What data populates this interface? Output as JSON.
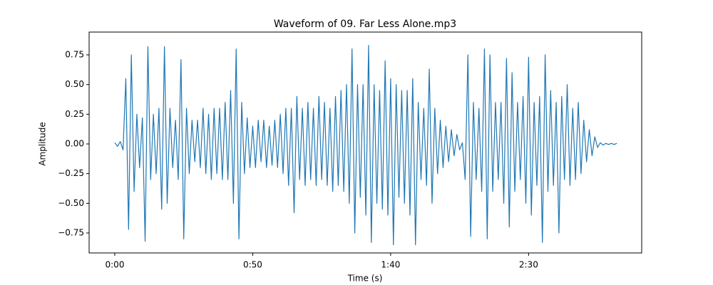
{
  "chart_data": {
    "type": "line",
    "title": "Waveform of 09. Far Less Alone.mp3",
    "x_label": "Time (s)",
    "y_label": "Amplitude",
    "xlim": [
      -9.3,
      191
    ],
    "ylim": [
      -0.918,
      0.942
    ],
    "xticks": [
      {
        "value": 0,
        "label": "0:00"
      },
      {
        "value": 50,
        "label": "0:50"
      },
      {
        "value": 100,
        "label": "1:40"
      },
      {
        "value": 150,
        "label": "2:30"
      }
    ],
    "yticks": [
      {
        "value": -0.75,
        "label": "−0.75"
      },
      {
        "value": -0.5,
        "label": "−0.50"
      },
      {
        "value": -0.25,
        "label": "−0.25"
      },
      {
        "value": 0,
        "label": "0.00"
      },
      {
        "value": 0.25,
        "label": "0.25"
      },
      {
        "value": 0.5,
        "label": "0.50"
      },
      {
        "value": 0.75,
        "label": "0.75"
      }
    ],
    "x": [
      0,
      1,
      2,
      3,
      4,
      5,
      6,
      7,
      8,
      9,
      10,
      11,
      12,
      13,
      14,
      15,
      16,
      17,
      18,
      19,
      20,
      21,
      22,
      23,
      24,
      25,
      26,
      27,
      28,
      29,
      30,
      31,
      32,
      33,
      34,
      35,
      36,
      37,
      38,
      39,
      40,
      41,
      42,
      43,
      44,
      45,
      46,
      47,
      48,
      49,
      50,
      51,
      52,
      53,
      54,
      55,
      56,
      57,
      58,
      59,
      60,
      61,
      62,
      63,
      64,
      65,
      66,
      67,
      68,
      69,
      70,
      71,
      72,
      73,
      74,
      75,
      76,
      77,
      78,
      79,
      80,
      81,
      82,
      83,
      84,
      85,
      86,
      87,
      88,
      89,
      90,
      91,
      92,
      93,
      94,
      95,
      96,
      97,
      98,
      99,
      100,
      101,
      102,
      103,
      104,
      105,
      106,
      107,
      108,
      109,
      110,
      111,
      112,
      113,
      114,
      115,
      116,
      117,
      118,
      119,
      120,
      121,
      122,
      123,
      124,
      125,
      126,
      127,
      128,
      129,
      130,
      131,
      132,
      133,
      134,
      135,
      136,
      137,
      138,
      139,
      140,
      141,
      142,
      143,
      144,
      145,
      146,
      147,
      148,
      149,
      150,
      151,
      152,
      153,
      154,
      155,
      156,
      157,
      158,
      159,
      160,
      161,
      162,
      163,
      164,
      165,
      166,
      167,
      168,
      169,
      170,
      171,
      172,
      173,
      174,
      175,
      176,
      177,
      178,
      179,
      180,
      181,
      182
    ],
    "series": [
      {
        "color": "#1f77b4",
        "values": [
          0.01,
          -0.02,
          0.02,
          -0.05,
          0.55,
          -0.72,
          0.75,
          -0.4,
          0.25,
          -0.2,
          0.22,
          -0.82,
          0.82,
          -0.3,
          0.25,
          -0.25,
          0.3,
          -0.55,
          0.82,
          -0.5,
          0.3,
          -0.2,
          0.2,
          -0.3,
          0.71,
          -0.8,
          0.3,
          -0.25,
          0.2,
          -0.15,
          0.2,
          -0.2,
          0.3,
          -0.25,
          0.25,
          -0.3,
          0.3,
          -0.25,
          0.3,
          -0.3,
          0.35,
          -0.3,
          0.45,
          -0.5,
          0.8,
          -0.8,
          0.35,
          -0.25,
          0.22,
          -0.2,
          0.15,
          -0.2,
          0.2,
          -0.15,
          0.2,
          -0.2,
          0.15,
          -0.18,
          0.2,
          -0.2,
          0.25,
          -0.25,
          0.3,
          -0.35,
          0.3,
          -0.58,
          0.4,
          -0.3,
          0.3,
          -0.35,
          0.35,
          -0.3,
          0.3,
          -0.35,
          0.4,
          -0.3,
          0.35,
          -0.35,
          0.3,
          -0.4,
          0.4,
          -0.35,
          0.45,
          -0.4,
          0.5,
          -0.5,
          0.8,
          -0.75,
          0.5,
          -0.45,
          0.5,
          -0.6,
          0.83,
          -0.83,
          0.5,
          -0.5,
          0.45,
          -0.55,
          0.7,
          -0.6,
          0.55,
          -0.85,
          0.5,
          -0.45,
          0.45,
          -0.5,
          0.45,
          -0.6,
          0.55,
          -0.85,
          0.35,
          -0.3,
          0.3,
          -0.35,
          0.63,
          -0.5,
          0.3,
          -0.25,
          0.2,
          -0.2,
          0.15,
          -0.15,
          0.12,
          -0.1,
          0.08,
          -0.05,
          0.01,
          -0.3,
          0.75,
          -0.78,
          0.35,
          -0.3,
          0.3,
          -0.4,
          0.8,
          -0.8,
          0.75,
          -0.4,
          0.35,
          -0.3,
          0.35,
          -0.5,
          0.72,
          -0.7,
          0.6,
          -0.4,
          0.35,
          -0.3,
          0.4,
          -0.5,
          0.73,
          -0.6,
          0.35,
          -0.35,
          0.4,
          -0.83,
          0.75,
          -0.4,
          0.45,
          -0.35,
          0.35,
          -0.75,
          0.4,
          -0.3,
          0.5,
          -0.35,
          0.3,
          -0.3,
          0.35,
          -0.25,
          0.2,
          -0.15,
          0.12,
          -0.1,
          0.06,
          -0.03,
          0.01,
          -0.01,
          0.005,
          -0.005,
          0.005,
          -0.005,
          0.005
        ]
      }
    ]
  }
}
